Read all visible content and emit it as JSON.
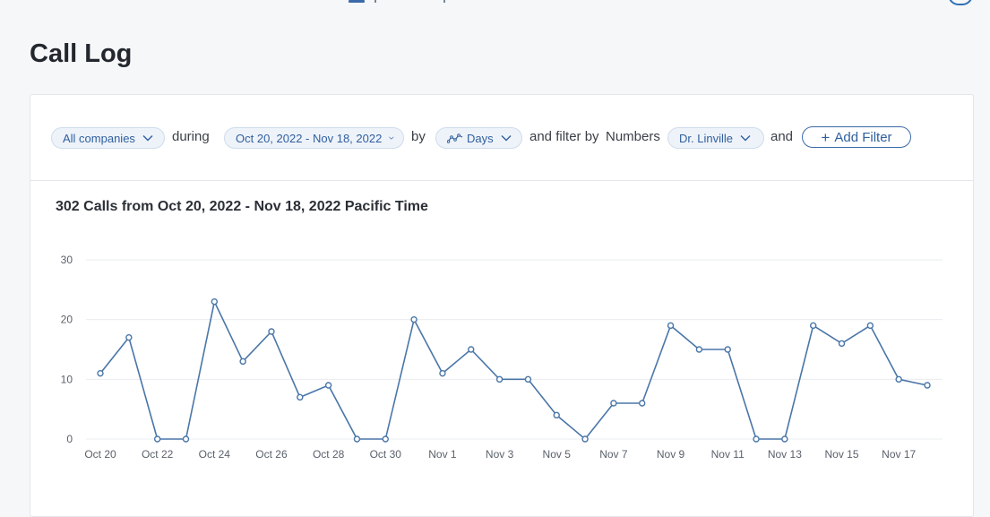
{
  "page": {
    "title": "Call Log"
  },
  "filters": {
    "company": "All companies",
    "during_word": "during",
    "date_range": "Oct 20, 2022 - Nov 18, 2022",
    "by_word": "by",
    "granularity": "Days",
    "filter_by_word": "and filter by",
    "numbers_word": "Numbers",
    "number": "Dr. Linville",
    "and_word": "and",
    "add_filter": "Add Filter"
  },
  "icons": {
    "chevron": "chevron-down-icon",
    "granularity": "line-chart-icon",
    "add": "plus-icon"
  },
  "colors": {
    "accent": "#3a6aa8",
    "line": "#4a76a8",
    "grid": "#e9ecef"
  },
  "chart_data": {
    "type": "line",
    "title": "302 Calls from Oct 20, 2022 - Nov 18, 2022 Pacific Time",
    "xlabel": "",
    "ylabel": "",
    "ylim": [
      0,
      30
    ],
    "yticks": [
      0,
      10,
      20,
      30
    ],
    "grid": true,
    "x": [
      "Oct 20",
      "Oct 21",
      "Oct 22",
      "Oct 23",
      "Oct 24",
      "Oct 25",
      "Oct 26",
      "Oct 27",
      "Oct 28",
      "Oct 29",
      "Oct 30",
      "Oct 31",
      "Nov 1",
      "Nov 2",
      "Nov 3",
      "Nov 4",
      "Nov 5",
      "Nov 6",
      "Nov 7",
      "Nov 8",
      "Nov 9",
      "Nov 10",
      "Nov 11",
      "Nov 12",
      "Nov 13",
      "Nov 14",
      "Nov 15",
      "Nov 16",
      "Nov 17",
      "Nov 18"
    ],
    "xtick_labels": [
      "Oct 20",
      "",
      "Oct 22",
      "",
      "Oct 24",
      "",
      "Oct 26",
      "",
      "Oct 28",
      "",
      "Oct 30",
      "",
      "Nov 1",
      "",
      "Nov 3",
      "",
      "Nov 5",
      "",
      "Nov 7",
      "",
      "Nov 9",
      "",
      "Nov 11",
      "",
      "Nov 13",
      "",
      "Nov 15",
      "",
      "Nov 17",
      ""
    ],
    "series": [
      {
        "values": [
          11,
          17,
          0,
          0,
          23,
          13,
          18,
          7,
          9,
          0,
          0,
          20,
          11,
          15,
          10,
          10,
          4,
          0,
          6,
          6,
          19,
          15,
          15,
          0,
          0,
          19,
          16,
          19,
          10,
          9
        ]
      }
    ]
  }
}
